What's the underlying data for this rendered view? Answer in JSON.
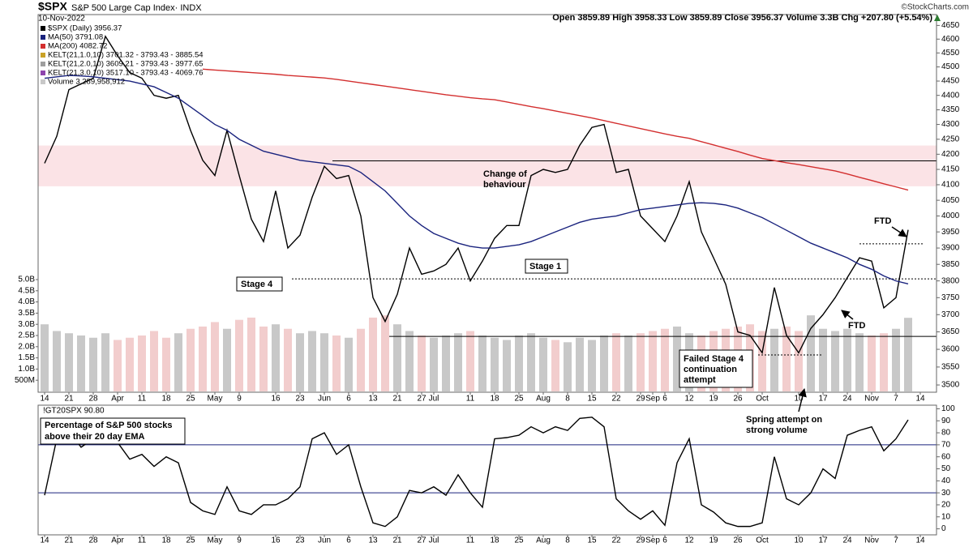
{
  "chart_data": [
    {
      "type": "line",
      "log": true,
      "title": "$SPX",
      "subtitle": "S&P 500 Large Cap Index· INDX",
      "date": "10-Nov-2022",
      "quote": "Open 3859.89  High 3958.33  Low 3859.89  Close 3956.37  Volume 3.3B  Chg +207.80 (+5.54%)",
      "credit": "©StockCharts.com",
      "categories": [
        "14",
        null,
        "21",
        null,
        "28",
        null,
        "Apr",
        null,
        "11",
        null,
        "18",
        null,
        "25",
        null,
        "May",
        null,
        "9",
        null,
        null,
        "16",
        null,
        "23",
        null,
        "Jun",
        null,
        "6",
        null,
        "13",
        null,
        "21",
        null,
        "27",
        "Jul",
        null,
        null,
        "11",
        null,
        "18",
        null,
        "25",
        null,
        "Aug",
        null,
        "8",
        null,
        "15",
        null,
        "22",
        null,
        "29",
        "Sep",
        "6",
        null,
        "12",
        null,
        "19",
        null,
        "26",
        null,
        "Oct",
        null,
        null,
        "10",
        null,
        "17",
        null,
        "24",
        null,
        "Nov",
        null,
        "7",
        null,
        "14"
      ],
      "ylim": [
        3480,
        4690
      ],
      "yticks": [
        3500,
        3550,
        3600,
        3650,
        3700,
        3750,
        3800,
        3850,
        3900,
        3950,
        4000,
        4050,
        4100,
        4150,
        4200,
        4250,
        4300,
        4350,
        4400,
        4450,
        4500,
        4550,
        4600,
        4650
      ],
      "y2lim": [
        0,
        5000000000
      ],
      "y2ticks": [
        {
          "value": 500000000,
          "label": "500M"
        },
        {
          "value": 1000000000,
          "label": "1.0B"
        },
        {
          "value": 1500000000,
          "label": "1.5B"
        },
        {
          "value": 2000000000,
          "label": "2.0B"
        },
        {
          "value": 2500000000,
          "label": "2.5B"
        },
        {
          "value": 3000000000,
          "label": "3.0B"
        },
        {
          "value": 3500000000,
          "label": "3.5B"
        },
        {
          "value": 4000000000,
          "label": "4.0B"
        },
        {
          "value": 4500000000,
          "label": "4.5B"
        },
        {
          "value": 5000000000,
          "label": "5.0B"
        }
      ],
      "series": [
        {
          "name": "$SPX (Daily) 3956.37",
          "color": "#000000",
          "values": [
            4170,
            4260,
            4420,
            4440,
            4460,
            4610,
            4540,
            4480,
            4460,
            4400,
            4390,
            4400,
            4280,
            4180,
            4130,
            4280,
            4130,
            3990,
            3920,
            4080,
            3900,
            3940,
            4060,
            4160,
            4120,
            4130,
            4000,
            3750,
            3680,
            3760,
            3900,
            3820,
            3830,
            3850,
            3900,
            3800,
            3860,
            3930,
            3970,
            3970,
            4130,
            4150,
            4140,
            4150,
            4230,
            4290,
            4300,
            4140,
            4150,
            4000,
            3960,
            3920,
            4000,
            4110,
            3950,
            3870,
            3790,
            3650,
            3640,
            3590,
            3780,
            3640,
            3590,
            3660,
            3700,
            3750,
            3810,
            3870,
            3860,
            3720,
            3750,
            3956.37,
            null
          ]
        },
        {
          "name": "MA(50) 3791.08",
          "color": "#1a237e",
          "values": [
            4460,
            4465,
            4470,
            4468,
            4465,
            4460,
            4455,
            4450,
            4440,
            4430,
            4410,
            4390,
            4360,
            4330,
            4300,
            4280,
            4250,
            4230,
            4210,
            4200,
            4190,
            4180,
            4175,
            4170,
            4165,
            4160,
            4140,
            4110,
            4080,
            4040,
            4000,
            3970,
            3945,
            3930,
            3915,
            3905,
            3900,
            3900,
            3905,
            3910,
            3920,
            3935,
            3950,
            3965,
            3980,
            3990,
            3995,
            4000,
            4010,
            4020,
            4025,
            4030,
            4035,
            4040,
            4042,
            4040,
            4035,
            4025,
            4010,
            3995,
            3975,
            3955,
            3935,
            3915,
            3900,
            3885,
            3870,
            3850,
            3835,
            3815,
            3800,
            3791.08,
            null
          ]
        },
        {
          "name": "MA(200) 4082.72",
          "color": "#d32f2f",
          "values": [
            null,
            null,
            null,
            null,
            null,
            null,
            null,
            null,
            null,
            null,
            null,
            null,
            null,
            4492,
            4489,
            4486,
            4483,
            4480,
            4477,
            4474,
            4470,
            4467,
            4464,
            4461,
            4456,
            4450,
            4444,
            4438,
            4432,
            4426,
            4420,
            4414,
            4408,
            4402,
            4397,
            4392,
            4388,
            4385,
            4377,
            4369,
            4361,
            4354,
            4346,
            4338,
            4330,
            4322,
            4313,
            4304,
            4295,
            4286,
            4277,
            4268,
            4260,
            4253,
            4242,
            4231,
            4220,
            4209,
            4197,
            4186,
            4179,
            4172,
            4166,
            4159,
            4152,
            4145,
            4135,
            4124,
            4114,
            4103,
            4093,
            4082.72,
            null
          ]
        },
        {
          "name": "Volume 3,289,958,912",
          "type": "bar",
          "axis": "y2",
          "color": "#c8c8c8",
          "down_color": "#f2cdcd",
          "values": [
            3000000000,
            2700000000,
            2600000000,
            2500000000,
            2400000000,
            2600000000,
            2300000000,
            2400000000,
            2500000000,
            2700000000,
            2400000000,
            2600000000,
            2800000000,
            2900000000,
            3100000000,
            2800000000,
            3200000000,
            3300000000,
            2900000000,
            3000000000,
            2800000000,
            2600000000,
            2700000000,
            2600000000,
            2500000000,
            2400000000,
            2800000000,
            3300000000,
            3400000000,
            3000000000,
            2700000000,
            2500000000,
            2400000000,
            2500000000,
            2600000000,
            2700000000,
            2500000000,
            2400000000,
            2300000000,
            2500000000,
            2600000000,
            2400000000,
            2300000000,
            2200000000,
            2400000000,
            2300000000,
            2500000000,
            2600000000,
            2500000000,
            2600000000,
            2700000000,
            2800000000,
            2900000000,
            2600000000,
            2500000000,
            2700000000,
            2800000000,
            2900000000,
            3000000000,
            2700000000,
            2800000000,
            2900000000,
            2700000000,
            3400000000,
            2800000000,
            2700000000,
            2800000000,
            2600000000,
            2500000000,
            2600000000,
            2800000000,
            3289958912,
            null
          ]
        }
      ],
      "legend_extra": [
        {
          "name": "KELT(21,1.0,10) 3701.32 - 3793.43 - 3885.54",
          "color": "#c9a227"
        },
        {
          "name": "KELT(21,2.0,10) 3609.21 - 3793.43 - 3977.65",
          "color": "#9e9e9e"
        },
        {
          "name": "KELT(21,3.0,10) 3517.10 - 3793.43 - 4069.76",
          "color": "#8e44ad"
        }
      ],
      "band": [
        4095,
        4229
      ],
      "band_color": "#fbe3e6",
      "levels": [
        {
          "value": 4178,
          "dash": false
        },
        {
          "value": 3806,
          "dash": true
        },
        {
          "value": 3637,
          "dash": false
        },
        {
          "value": 3913,
          "dash": true
        },
        {
          "value": 3584,
          "dash": true
        }
      ],
      "annotations": [
        [
          "Change of",
          "behaviour"
        ],
        [
          "Stage 1"
        ],
        [
          "Stage 4"
        ],
        [
          "FTD"
        ],
        [
          "FTD"
        ],
        [
          "Failed Stage 4",
          "continuation",
          "attempt"
        ],
        [
          "Spring attempt on",
          "strong volume"
        ]
      ]
    },
    {
      "type": "line",
      "title": "!GT20SPX 90.80",
      "label": [
        "Percentage of S&P 500 stocks",
        "above their 20 day EMA"
      ],
      "categories": [
        "14",
        null,
        "21",
        null,
        "28",
        null,
        "Apr",
        null,
        "11",
        null,
        "18",
        null,
        "25",
        null,
        "May",
        null,
        "9",
        null,
        null,
        "16",
        null,
        "23",
        null,
        "Jun",
        null,
        "6",
        null,
        "13",
        null,
        "21",
        null,
        "27",
        "Jul",
        null,
        null,
        "11",
        null,
        "18",
        null,
        "25",
        null,
        "Aug",
        null,
        "8",
        null,
        "15",
        null,
        "22",
        null,
        "29",
        "Sep",
        "6",
        null,
        "12",
        null,
        "19",
        null,
        "26",
        null,
        "Oct",
        null,
        null,
        "10",
        null,
        "17",
        null,
        "24",
        null,
        "Nov",
        null,
        "7",
        null,
        "14"
      ],
      "ylim": [
        -5,
        103
      ],
      "yticks": [
        0,
        10,
        20,
        30,
        40,
        50,
        60,
        70,
        80,
        90,
        100
      ],
      "hlines": [
        70,
        30
      ],
      "hline_color": "#1a237e",
      "series": [
        {
          "color": "#000000",
          "values": [
            28,
            75,
            82,
            68,
            75,
            85,
            72,
            58,
            62,
            52,
            60,
            55,
            22,
            15,
            12,
            35,
            15,
            12,
            20,
            20,
            25,
            35,
            75,
            80,
            62,
            70,
            35,
            5,
            2,
            10,
            32,
            30,
            35,
            28,
            45,
            30,
            18,
            75,
            76,
            78,
            85,
            80,
            85,
            82,
            92,
            93,
            85,
            25,
            15,
            8,
            15,
            3,
            55,
            75,
            20,
            14,
            5,
            2,
            2,
            5,
            60,
            25,
            20,
            30,
            50,
            42,
            78,
            82,
            85,
            65,
            75,
            90.8,
            null
          ]
        }
      ]
    }
  ]
}
